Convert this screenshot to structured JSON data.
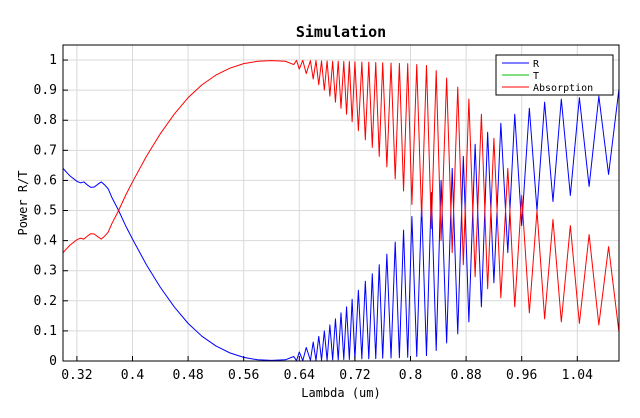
{
  "chart_data": {
    "type": "line",
    "title": "Simulation",
    "xlabel": "Lambda (um)",
    "ylabel": "Power R/T",
    "xlim": [
      0.3,
      1.1
    ],
    "ylim": [
      0,
      1.05
    ],
    "xticks": [
      0.32,
      0.4,
      0.48,
      0.56,
      0.64,
      0.72,
      0.8,
      0.88,
      0.96,
      1.04
    ],
    "xtick_labels": [
      "0.32",
      "0.4",
      "0.48",
      "0.56",
      "0.64",
      "0.72",
      "0.8",
      "0.88",
      "0.96",
      "1.04"
    ],
    "yticks": [
      0,
      0.1,
      0.2,
      0.3,
      0.4,
      0.5,
      0.6,
      0.7,
      0.8,
      0.9,
      1
    ],
    "ytick_labels": [
      "0",
      "0.1",
      "0.2",
      "0.3",
      "0.4",
      "0.5",
      "0.6",
      "0.7",
      "0.8",
      "0.9",
      "1"
    ],
    "grid": true,
    "legend_position": "top-right",
    "series": [
      {
        "name": "R",
        "color": "#0000ff",
        "x": [
          0.3,
          0.31,
          0.32,
          0.325,
          0.33,
          0.335,
          0.34,
          0.345,
          0.35,
          0.355,
          0.36,
          0.365,
          0.37,
          0.38,
          0.39,
          0.4,
          0.42,
          0.44,
          0.46,
          0.48,
          0.5,
          0.52,
          0.54,
          0.56,
          0.58,
          0.6,
          0.62,
          0.632,
          0.636,
          0.64,
          0.645,
          0.65,
          0.656,
          0.66,
          0.664,
          0.668,
          0.672,
          0.676,
          0.68,
          0.684,
          0.688,
          0.692,
          0.696,
          0.7,
          0.704,
          0.708,
          0.712,
          0.716,
          0.72,
          0.725,
          0.73,
          0.735,
          0.74,
          0.745,
          0.75,
          0.755,
          0.76,
          0.766,
          0.772,
          0.778,
          0.784,
          0.79,
          0.796,
          0.802,
          0.809,
          0.816,
          0.823,
          0.83,
          0.837,
          0.844,
          0.852,
          0.86,
          0.868,
          0.876,
          0.884,
          0.893,
          0.902,
          0.911,
          0.92,
          0.93,
          0.94,
          0.95,
          0.96,
          0.971,
          0.982,
          0.993,
          1.005,
          1.017,
          1.03,
          1.043,
          1.057,
          1.071,
          1.085,
          1.1
        ],
        "values": [
          0.64,
          0.615,
          0.597,
          0.592,
          0.595,
          0.585,
          0.577,
          0.578,
          0.587,
          0.595,
          0.585,
          0.572,
          0.545,
          0.5,
          0.45,
          0.405,
          0.32,
          0.245,
          0.18,
          0.125,
          0.082,
          0.05,
          0.027,
          0.012,
          0.004,
          0.002,
          0.004,
          0.015,
          0.001,
          0.03,
          0.001,
          0.045,
          0.002,
          0.063,
          0.002,
          0.082,
          0.003,
          0.1,
          0.003,
          0.12,
          0.004,
          0.14,
          0.004,
          0.16,
          0.005,
          0.18,
          0.005,
          0.205,
          0.006,
          0.235,
          0.007,
          0.265,
          0.007,
          0.29,
          0.008,
          0.32,
          0.009,
          0.355,
          0.01,
          0.395,
          0.011,
          0.435,
          0.012,
          0.48,
          0.015,
          0.52,
          0.018,
          0.56,
          0.035,
          0.6,
          0.06,
          0.64,
          0.09,
          0.68,
          0.13,
          0.72,
          0.18,
          0.76,
          0.26,
          0.79,
          0.36,
          0.82,
          0.45,
          0.84,
          0.5,
          0.86,
          0.53,
          0.87,
          0.55,
          0.875,
          0.58,
          0.88,
          0.62,
          0.905
        ]
      },
      {
        "name": "T",
        "color": "#00c000",
        "x": [
          0.3,
          1.1
        ],
        "values": [
          0,
          0
        ]
      },
      {
        "name": "Absorption",
        "color": "#ff0000",
        "x": [
          0.3,
          0.31,
          0.32,
          0.325,
          0.33,
          0.335,
          0.34,
          0.345,
          0.35,
          0.355,
          0.36,
          0.365,
          0.37,
          0.38,
          0.39,
          0.4,
          0.42,
          0.44,
          0.46,
          0.48,
          0.5,
          0.52,
          0.54,
          0.56,
          0.58,
          0.6,
          0.62,
          0.632,
          0.636,
          0.64,
          0.645,
          0.65,
          0.656,
          0.66,
          0.664,
          0.668,
          0.672,
          0.676,
          0.68,
          0.684,
          0.688,
          0.692,
          0.696,
          0.7,
          0.704,
          0.708,
          0.712,
          0.716,
          0.72,
          0.725,
          0.73,
          0.735,
          0.74,
          0.745,
          0.75,
          0.755,
          0.76,
          0.766,
          0.772,
          0.778,
          0.784,
          0.79,
          0.796,
          0.802,
          0.809,
          0.816,
          0.823,
          0.83,
          0.837,
          0.844,
          0.852,
          0.86,
          0.868,
          0.876,
          0.884,
          0.893,
          0.902,
          0.911,
          0.92,
          0.93,
          0.94,
          0.95,
          0.96,
          0.971,
          0.982,
          0.993,
          1.005,
          1.017,
          1.03,
          1.043,
          1.057,
          1.071,
          1.085,
          1.1
        ],
        "values": [
          0.36,
          0.385,
          0.403,
          0.408,
          0.405,
          0.415,
          0.423,
          0.422,
          0.413,
          0.405,
          0.415,
          0.428,
          0.455,
          0.5,
          0.55,
          0.595,
          0.68,
          0.755,
          0.82,
          0.875,
          0.918,
          0.95,
          0.973,
          0.988,
          0.996,
          0.998,
          0.996,
          0.985,
          0.999,
          0.97,
          0.999,
          0.955,
          0.998,
          0.937,
          0.998,
          0.918,
          0.997,
          0.9,
          0.997,
          0.88,
          0.996,
          0.86,
          0.996,
          0.84,
          0.995,
          0.82,
          0.995,
          0.795,
          0.994,
          0.765,
          0.993,
          0.735,
          0.993,
          0.71,
          0.992,
          0.68,
          0.991,
          0.645,
          0.99,
          0.605,
          0.989,
          0.565,
          0.988,
          0.52,
          0.985,
          0.48,
          0.982,
          0.44,
          0.965,
          0.4,
          0.94,
          0.36,
          0.91,
          0.32,
          0.87,
          0.28,
          0.82,
          0.24,
          0.74,
          0.21,
          0.64,
          0.18,
          0.55,
          0.16,
          0.5,
          0.14,
          0.47,
          0.13,
          0.45,
          0.125,
          0.42,
          0.12,
          0.38,
          0.095
        ]
      }
    ]
  }
}
